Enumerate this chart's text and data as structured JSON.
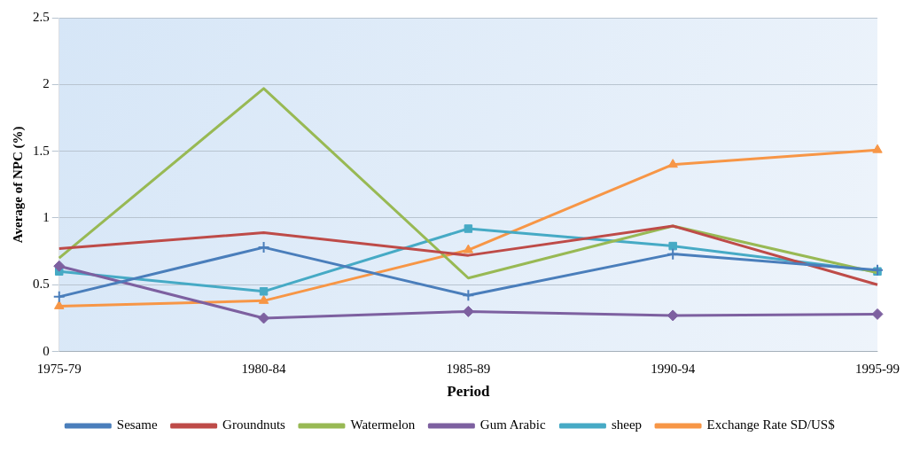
{
  "chart_data": {
    "type": "line",
    "xlabel": "Period",
    "ylabel": "Average of NPC (%)",
    "categories": [
      "1975-79",
      "1980-84",
      "1985-89",
      "1990-94",
      "1995-99"
    ],
    "ylim": [
      0,
      2.5
    ],
    "yticks": [
      0,
      0.5,
      1,
      1.5,
      2,
      2.5
    ],
    "grid": "y",
    "legend": "bottom",
    "series": [
      {
        "name": "Sesame",
        "color": "#4a7ebb",
        "marker": "cross",
        "values": [
          0.41,
          0.78,
          0.42,
          0.73,
          0.61
        ]
      },
      {
        "name": "Groundnuts",
        "color": "#be4b48",
        "marker": "none",
        "values": [
          0.77,
          0.89,
          0.72,
          0.94,
          0.5
        ]
      },
      {
        "name": "Watermelon",
        "color": "#98b954",
        "marker": "none",
        "values": [
          0.7,
          1.97,
          0.55,
          0.94,
          0.59
        ]
      },
      {
        "name": "Gum Arabic",
        "color": "#7d60a0",
        "marker": "diamond",
        "values": [
          0.64,
          0.25,
          0.3,
          0.27,
          0.28
        ]
      },
      {
        "name": "sheep",
        "color": "#46aac5",
        "marker": "square",
        "values": [
          0.6,
          0.45,
          0.92,
          0.79,
          0.6
        ]
      },
      {
        "name": "Exchange Rate SD/US$",
        "color": "#f79646",
        "marker": "triangle",
        "values": [
          0.34,
          0.38,
          0.76,
          1.4,
          1.51
        ]
      }
    ]
  }
}
